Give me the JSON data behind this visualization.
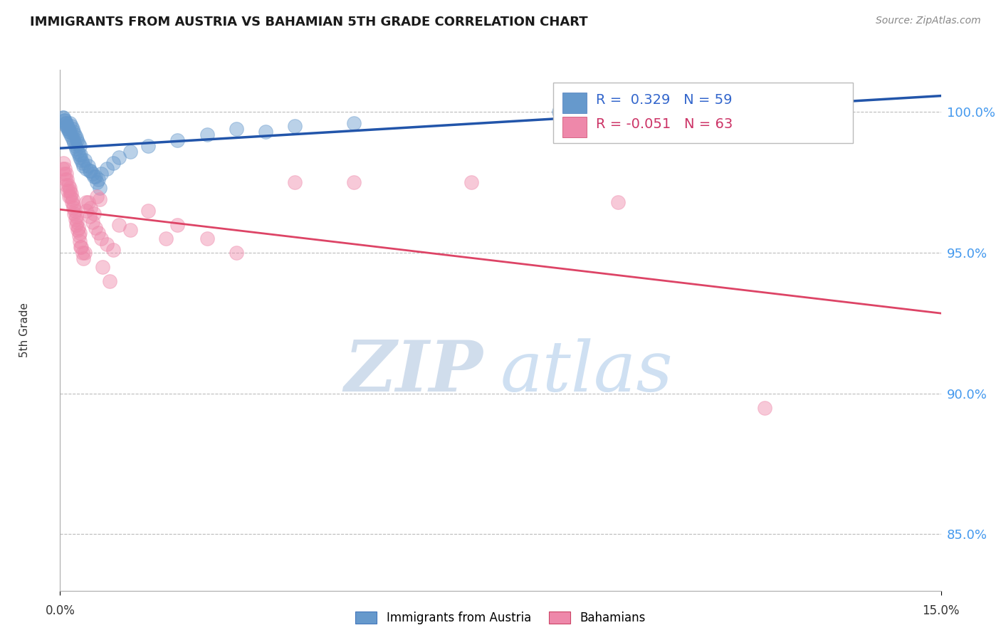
{
  "title": "IMMIGRANTS FROM AUSTRIA VS BAHAMIAN 5TH GRADE CORRELATION CHART",
  "source_text": "Source: ZipAtlas.com",
  "ylabel": "5th Grade",
  "xlim": [
    0.0,
    15.0
  ],
  "ylim": [
    83.0,
    101.5
  ],
  "yticks": [
    85.0,
    90.0,
    95.0,
    100.0
  ],
  "ytick_labels": [
    "85.0%",
    "90.0%",
    "95.0%",
    "100.0%"
  ],
  "legend_blue_r": "R =  0.329",
  "legend_blue_n": "N = 59",
  "legend_pink_r": "R = -0.051",
  "legend_pink_n": "N = 63",
  "legend_label_blue": "Immigrants from Austria",
  "legend_label_pink": "Bahamians",
  "blue_color": "#6699cc",
  "pink_color": "#ee88aa",
  "blue_line_color": "#2255aa",
  "pink_line_color": "#dd4466",
  "watermark_zip": "ZIP",
  "watermark_atlas": "atlas",
  "background_color": "#ffffff",
  "grid_color": "#bbbbbb",
  "blue_scatter_x": [
    0.05,
    0.07,
    0.09,
    0.11,
    0.13,
    0.15,
    0.17,
    0.19,
    0.21,
    0.23,
    0.25,
    0.27,
    0.29,
    0.31,
    0.33,
    0.06,
    0.08,
    0.1,
    0.12,
    0.14,
    0.16,
    0.18,
    0.2,
    0.22,
    0.24,
    0.26,
    0.28,
    0.3,
    0.32,
    0.34,
    0.36,
    0.38,
    0.4,
    0.45,
    0.5,
    0.55,
    0.6,
    0.65,
    0.7,
    0.8,
    0.9,
    1.0,
    1.2,
    1.5,
    2.0,
    2.5,
    3.0,
    3.5,
    4.0,
    5.0,
    0.35,
    0.42,
    0.48,
    0.52,
    0.58,
    0.62,
    0.68,
    8.5,
    9.0
  ],
  "blue_scatter_y": [
    99.8,
    99.7,
    99.6,
    99.5,
    99.4,
    99.3,
    99.6,
    99.5,
    99.4,
    99.3,
    99.2,
    99.1,
    99.0,
    98.9,
    98.8,
    99.8,
    99.7,
    99.6,
    99.5,
    99.4,
    99.3,
    99.2,
    99.1,
    99.0,
    98.9,
    98.8,
    98.7,
    98.6,
    98.5,
    98.4,
    98.3,
    98.2,
    98.1,
    98.0,
    97.9,
    97.8,
    97.7,
    97.6,
    97.8,
    98.0,
    98.2,
    98.4,
    98.6,
    98.8,
    99.0,
    99.2,
    99.4,
    99.3,
    99.5,
    99.6,
    98.5,
    98.3,
    98.1,
    97.9,
    97.7,
    97.5,
    97.3,
    100.0,
    100.0
  ],
  "pink_scatter_x": [
    0.05,
    0.07,
    0.09,
    0.11,
    0.13,
    0.15,
    0.17,
    0.19,
    0.21,
    0.23,
    0.25,
    0.27,
    0.29,
    0.31,
    0.33,
    0.06,
    0.08,
    0.1,
    0.12,
    0.14,
    0.16,
    0.18,
    0.2,
    0.22,
    0.24,
    0.26,
    0.28,
    0.3,
    0.32,
    0.34,
    0.36,
    0.38,
    0.4,
    0.45,
    0.5,
    0.55,
    0.6,
    0.65,
    0.7,
    0.8,
    0.9,
    1.0,
    1.2,
    1.5,
    2.0,
    2.5,
    3.0,
    4.0,
    5.0,
    7.0,
    0.35,
    0.42,
    0.48,
    0.52,
    0.58,
    0.62,
    0.68,
    9.5,
    12.0,
    0.44,
    0.72,
    0.85,
    1.8
  ],
  "pink_scatter_y": [
    98.0,
    97.8,
    97.6,
    97.4,
    97.2,
    97.0,
    97.3,
    97.1,
    96.9,
    96.7,
    96.5,
    96.3,
    96.1,
    95.9,
    95.7,
    98.2,
    98.0,
    97.8,
    97.6,
    97.4,
    97.2,
    97.0,
    96.8,
    96.6,
    96.4,
    96.2,
    96.0,
    95.8,
    95.6,
    95.4,
    95.2,
    95.0,
    94.8,
    96.5,
    96.3,
    96.1,
    95.9,
    95.7,
    95.5,
    95.3,
    95.1,
    96.0,
    95.8,
    96.5,
    96.0,
    95.5,
    95.0,
    97.5,
    97.5,
    97.5,
    95.2,
    95.0,
    96.8,
    96.6,
    96.4,
    97.0,
    96.9,
    96.8,
    89.5,
    96.8,
    94.5,
    94.0,
    95.5
  ]
}
